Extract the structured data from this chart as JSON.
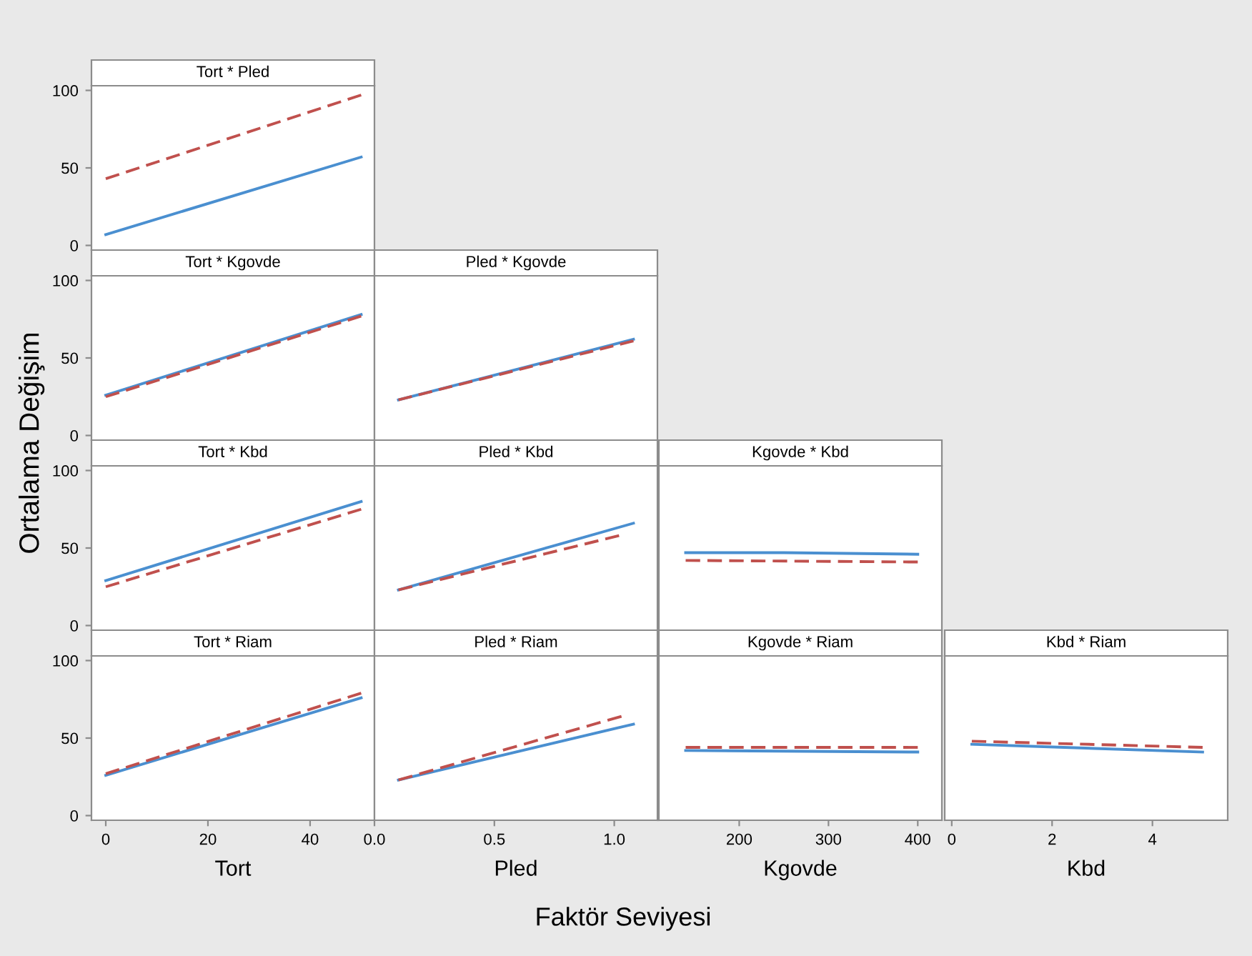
{
  "chart_data": [
    {
      "type": "line",
      "title": "Tort * Pled",
      "ylabel": "Ortalama Değişim",
      "xlim": [
        -2.8,
        52.6
      ],
      "ylim": [
        -3,
        103
      ],
      "yticks": [
        0,
        50,
        100
      ],
      "tick_labels": "y",
      "grid": false,
      "series": [
        {
          "color": "#4a8fd0",
          "line_style": "solid",
          "x": [
            0,
            50
          ],
          "values": [
            7,
            57
          ]
        },
        {
          "color": "#c0504d",
          "line_style": "dashed",
          "x": [
            0,
            50
          ],
          "values": [
            43,
            97
          ]
        }
      ]
    },
    {
      "type": "line",
      "title": "Tort * Kgovde",
      "xlim": [
        -2.8,
        52.6
      ],
      "ylim": [
        -3,
        103
      ],
      "yticks": [
        0,
        50,
        100
      ],
      "tick_labels": "y",
      "grid": false,
      "series": [
        {
          "color": "#4a8fd0",
          "line_style": "solid",
          "x": [
            0,
            50
          ],
          "values": [
            26,
            78
          ]
        },
        {
          "color": "#c0504d",
          "line_style": "dashed",
          "x": [
            0,
            50
          ],
          "values": [
            25,
            77
          ]
        }
      ]
    },
    {
      "type": "line",
      "title": "Pled * Kgovde",
      "xlim": [
        0,
        1.18
      ],
      "ylim": [
        -3,
        103
      ],
      "tick_labels": false,
      "grid": false,
      "series": [
        {
          "color": "#4a8fd0",
          "line_style": "solid",
          "x": [
            0.1,
            1.08
          ],
          "values": [
            23,
            62
          ]
        },
        {
          "color": "#c0504d",
          "line_style": "dashed",
          "x": [
            0.1,
            1.08
          ],
          "values": [
            23,
            61
          ]
        }
      ]
    },
    {
      "type": "line",
      "title": "Tort * Kbd",
      "xlim": [
        -2.8,
        52.6
      ],
      "ylim": [
        -3,
        103
      ],
      "yticks": [
        0,
        50,
        100
      ],
      "tick_labels": "y",
      "grid": false,
      "series": [
        {
          "color": "#4a8fd0",
          "line_style": "solid",
          "x": [
            0,
            50
          ],
          "values": [
            29,
            80
          ]
        },
        {
          "color": "#c0504d",
          "line_style": "dashed",
          "x": [
            0,
            50
          ],
          "values": [
            25,
            75
          ]
        }
      ]
    },
    {
      "type": "line",
      "title": "Pled * Kbd",
      "xlim": [
        0,
        1.18
      ],
      "ylim": [
        -3,
        103
      ],
      "tick_labels": false,
      "grid": false,
      "series": [
        {
          "color": "#4a8fd0",
          "line_style": "solid",
          "x": [
            0.1,
            1.08
          ],
          "values": [
            23,
            66
          ]
        },
        {
          "color": "#c0504d",
          "line_style": "dashed",
          "x": [
            0.1,
            1.02
          ],
          "values": [
            23,
            58
          ]
        }
      ]
    },
    {
      "type": "line",
      "title": "Kgovde * Kbd",
      "xlim": [
        110,
        427
      ],
      "ylim": [
        -3,
        103
      ],
      "tick_labels": false,
      "grid": false,
      "series": [
        {
          "color": "#4a8fd0",
          "line_style": "solid",
          "x": [
            140,
            250,
            400
          ],
          "values": [
            47,
            47,
            46
          ]
        },
        {
          "color": "#c0504d",
          "line_style": "dashed",
          "x": [
            140,
            400
          ],
          "values": [
            42,
            41
          ]
        }
      ]
    },
    {
      "type": "line",
      "title": "Tort * Riam",
      "xlabel": "Tort",
      "xlim": [
        -2.8,
        52.6
      ],
      "ylim": [
        -3,
        103
      ],
      "xticks": [
        0,
        20,
        40
      ],
      "yticks": [
        0,
        50,
        100
      ],
      "grid": false,
      "series": [
        {
          "color": "#4a8fd0",
          "line_style": "solid",
          "x": [
            0,
            50
          ],
          "values": [
            26,
            76
          ]
        },
        {
          "color": "#c0504d",
          "line_style": "dashed",
          "x": [
            0,
            50
          ],
          "values": [
            27,
            79
          ]
        }
      ]
    },
    {
      "type": "line",
      "title": "Pled * Riam",
      "xlabel": "Pled",
      "xlim": [
        0,
        1.18
      ],
      "ylim": [
        -3,
        103
      ],
      "xticks": [
        {
          "value": 0,
          "label": "0.0"
        },
        0.5,
        {
          "value": 1,
          "label": "1.0"
        }
      ],
      "tick_labels": "x",
      "grid": false,
      "series": [
        {
          "color": "#4a8fd0",
          "line_style": "solid",
          "x": [
            0.1,
            1.08
          ],
          "values": [
            23,
            59
          ]
        },
        {
          "color": "#c0504d",
          "line_style": "dashed",
          "x": [
            0.1,
            1.03
          ],
          "values": [
            23,
            64
          ]
        }
      ]
    },
    {
      "type": "line",
      "title": "Kgovde * Riam",
      "xlabel": "Kgovde",
      "xlim": [
        110,
        427
      ],
      "ylim": [
        -3,
        103
      ],
      "xticks": [
        200,
        300,
        400
      ],
      "tick_labels": "x",
      "grid": false,
      "annotations": [
        "Faktör Seviyesi"
      ],
      "series": [
        {
          "color": "#4a8fd0",
          "line_style": "solid",
          "x": [
            140,
            400
          ],
          "values": [
            42,
            41
          ]
        },
        {
          "color": "#c0504d",
          "line_style": "dashed",
          "x": [
            140,
            400
          ],
          "values": [
            44,
            44
          ]
        }
      ]
    },
    {
      "type": "line",
      "title": "Kbd * Riam",
      "xlabel": "Kbd",
      "xlim": [
        -0.14,
        5.5
      ],
      "ylim": [
        -3,
        103
      ],
      "xticks": [
        0,
        2,
        4
      ],
      "tick_labels": "x",
      "grid": false,
      "series": [
        {
          "color": "#4a8fd0",
          "line_style": "solid",
          "x": [
            0.4,
            5.0
          ],
          "values": [
            46,
            41
          ]
        },
        {
          "color": "#c0504d",
          "line_style": "dashed",
          "x": [
            0.4,
            5.0
          ],
          "values": [
            48,
            44
          ]
        }
      ]
    }
  ]
}
